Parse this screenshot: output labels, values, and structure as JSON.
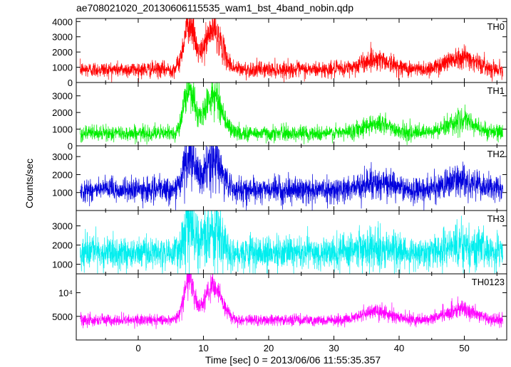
{
  "chart_data": {
    "type": "line",
    "title": "ae708021020_20130606115535_wam1_bst_4band_nobin.qdp",
    "xlabel": "Time [sec] 0 = 2013/06/06 11:55:35.357",
    "ylabel": "Counts/sec",
    "xlim": [
      -9.5,
      56.5
    ],
    "x_ticks": [
      0,
      10,
      20,
      30,
      40,
      50
    ],
    "x_tick_labels": [
      "0",
      "10",
      "20",
      "30",
      "40",
      "50"
    ],
    "grid": false,
    "bursts": [
      {
        "center": 7.8,
        "width": 0.8,
        "amp": 1.0
      },
      {
        "center": 11.5,
        "width": 1.3,
        "amp": 0.85
      },
      {
        "center": 36.5,
        "width": 2.2,
        "amp": 0.22
      },
      {
        "center": 49.5,
        "width": 2.2,
        "amp": 0.28
      }
    ],
    "panels": [
      {
        "name": "TH0",
        "color": "#ff0000",
        "ylim": [
          0,
          4200
        ],
        "y_ticks": [
          0,
          1000,
          2000,
          3000,
          4000
        ],
        "y_tick_labels": [
          "0",
          "1000",
          "2000",
          "3000",
          "4000"
        ],
        "baseline": 850,
        "peak": 3100,
        "noise": 260,
        "points": [
          [
            -9,
            850
          ],
          [
            0,
            1000
          ],
          [
            7.8,
            3300
          ],
          [
            9.5,
            1600
          ],
          [
            11.5,
            2700
          ],
          [
            15,
            1100
          ],
          [
            20,
            900
          ],
          [
            30,
            850
          ],
          [
            36.5,
            1400
          ],
          [
            42,
            900
          ],
          [
            49.5,
            1950
          ],
          [
            56,
            800
          ]
        ]
      },
      {
        "name": "TH1",
        "color": "#00ee00",
        "ylim": [
          0,
          3800
        ],
        "y_ticks": [
          0,
          1000,
          2000,
          3000
        ],
        "y_tick_labels": [
          "0",
          "1000",
          "2000",
          "3000"
        ],
        "baseline": 750,
        "peak": 2700,
        "noise": 230,
        "points": [
          [
            -9,
            750
          ],
          [
            0,
            950
          ],
          [
            7.8,
            2900
          ],
          [
            9.5,
            1300
          ],
          [
            11.5,
            2500
          ],
          [
            15,
            1100
          ],
          [
            20,
            800
          ],
          [
            30,
            750
          ],
          [
            36.5,
            1300
          ],
          [
            42,
            850
          ],
          [
            49.5,
            1500
          ],
          [
            56,
            700
          ]
        ]
      },
      {
        "name": "TH2",
        "color": "#0000dd",
        "ylim": [
          0,
          3600
        ],
        "y_ticks": [
          1000,
          2000,
          3000
        ],
        "y_tick_labels": [
          "1000",
          "2000",
          "3000"
        ],
        "baseline": 1150,
        "peak": 1900,
        "noise": 330,
        "points": [
          [
            -9,
            1100
          ],
          [
            0,
            1250
          ],
          [
            7.8,
            2800
          ],
          [
            9.5,
            1400
          ],
          [
            11.5,
            2200
          ],
          [
            15,
            1300
          ],
          [
            20,
            1150
          ],
          [
            30,
            1100
          ],
          [
            36.5,
            1350
          ],
          [
            42,
            1150
          ],
          [
            49.5,
            1300
          ],
          [
            56,
            1100
          ]
        ]
      },
      {
        "name": "TH3",
        "color": "#00eeee",
        "ylim": [
          500,
          3800
        ],
        "y_ticks": [
          1000,
          2000,
          3000
        ],
        "y_tick_labels": [
          "1000",
          "2000",
          "3000"
        ],
        "baseline": 1600,
        "peak": 1500,
        "noise": 420,
        "points": [
          [
            -9,
            1600
          ],
          [
            0,
            1650
          ],
          [
            7.8,
            2700
          ],
          [
            9.5,
            1800
          ],
          [
            11.5,
            2500
          ],
          [
            15,
            1700
          ],
          [
            20,
            1600
          ],
          [
            30,
            1600
          ],
          [
            36.5,
            1650
          ],
          [
            42,
            1600
          ],
          [
            49.5,
            1650
          ],
          [
            56,
            1550
          ]
        ]
      },
      {
        "name": "TH0123",
        "color": "#ff00ff",
        "ylim": [
          0,
          14000
        ],
        "y_ticks": [
          5000,
          10000
        ],
        "y_tick_labels": [
          "5000",
          "10⁴"
        ],
        "baseline": 4200,
        "peak": 8500,
        "noise": 600,
        "points": [
          [
            -9,
            4200
          ],
          [
            0,
            4700
          ],
          [
            7.8,
            12500
          ],
          [
            9.5,
            6000
          ],
          [
            11.5,
            11000
          ],
          [
            15,
            5000
          ],
          [
            20,
            4300
          ],
          [
            30,
            4200
          ],
          [
            36.5,
            5700
          ],
          [
            42,
            4300
          ],
          [
            49.5,
            6800
          ],
          [
            56,
            4000
          ]
        ]
      }
    ]
  }
}
